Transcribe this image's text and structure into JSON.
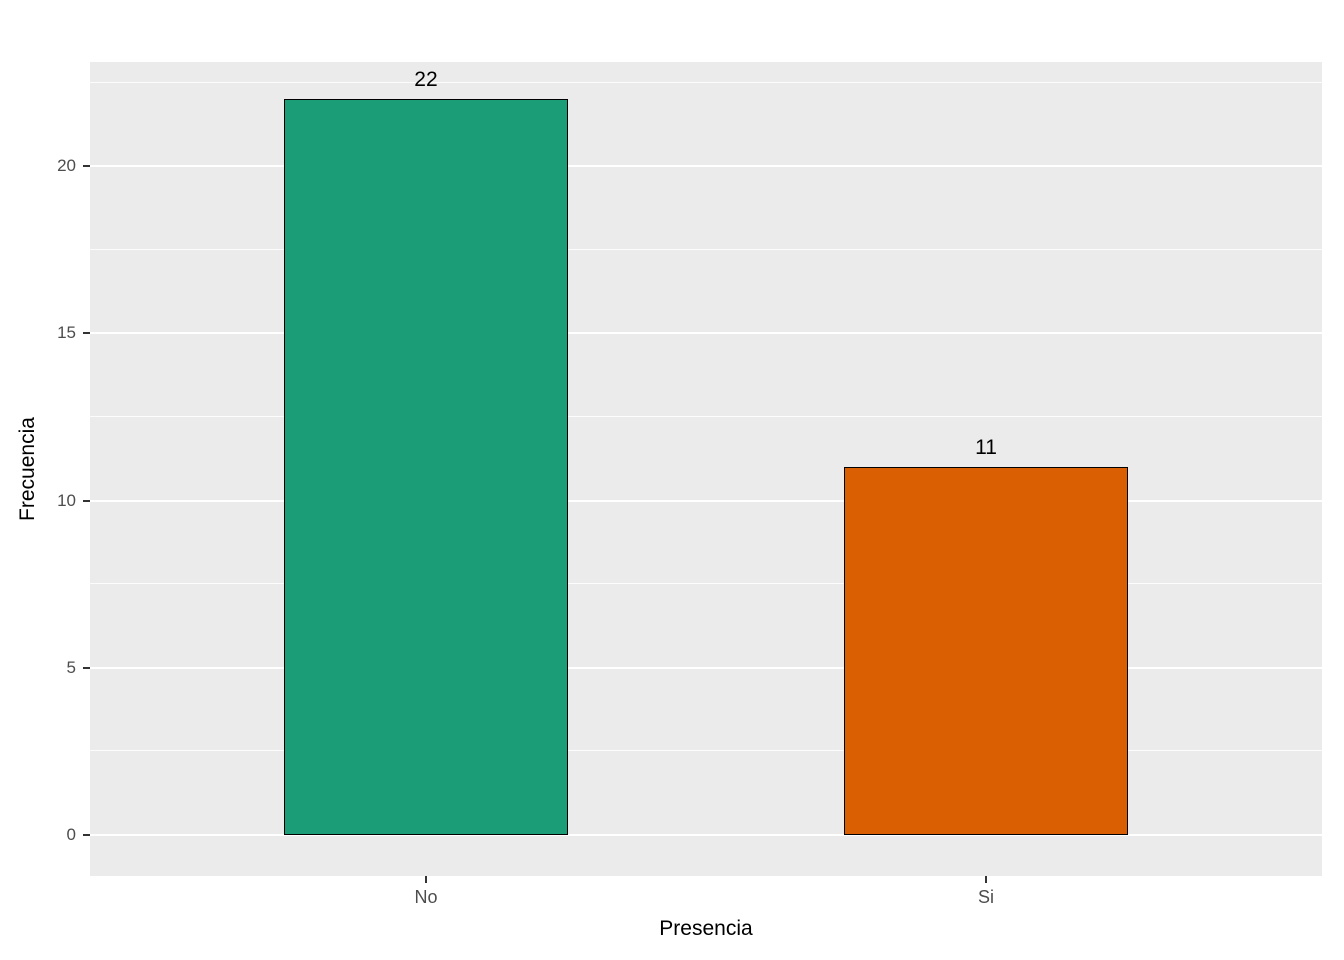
{
  "chart_data": {
    "type": "bar",
    "title": "",
    "xlabel": "Presencia",
    "ylabel": "Frecuencia",
    "categories": [
      "No",
      "Si"
    ],
    "values": [
      22,
      11
    ],
    "bar_labels": [
      "22",
      "11"
    ],
    "yticks": [
      0,
      5,
      10,
      15,
      20
    ],
    "y_minor_gridlines": [
      2.5,
      7.5,
      12.5,
      17.5,
      22.5
    ],
    "y_range": [
      -1.23,
      23.12
    ],
    "ylim": [
      0,
      23
    ],
    "grid": "on",
    "legend": "none",
    "bar_center_fractions": [
      0.2727,
      0.7273
    ],
    "bar_width_fraction": 0.23,
    "colors": {
      "bars": [
        "#1B9E77",
        "#D95F02"
      ],
      "bar_border": "#000000",
      "panel_background": "#EBEBEB",
      "gridline": "#FFFFFF",
      "axis_text": "#4D4D4D",
      "axis_title": "#000000",
      "figure_background": "#FFFFFF"
    }
  }
}
